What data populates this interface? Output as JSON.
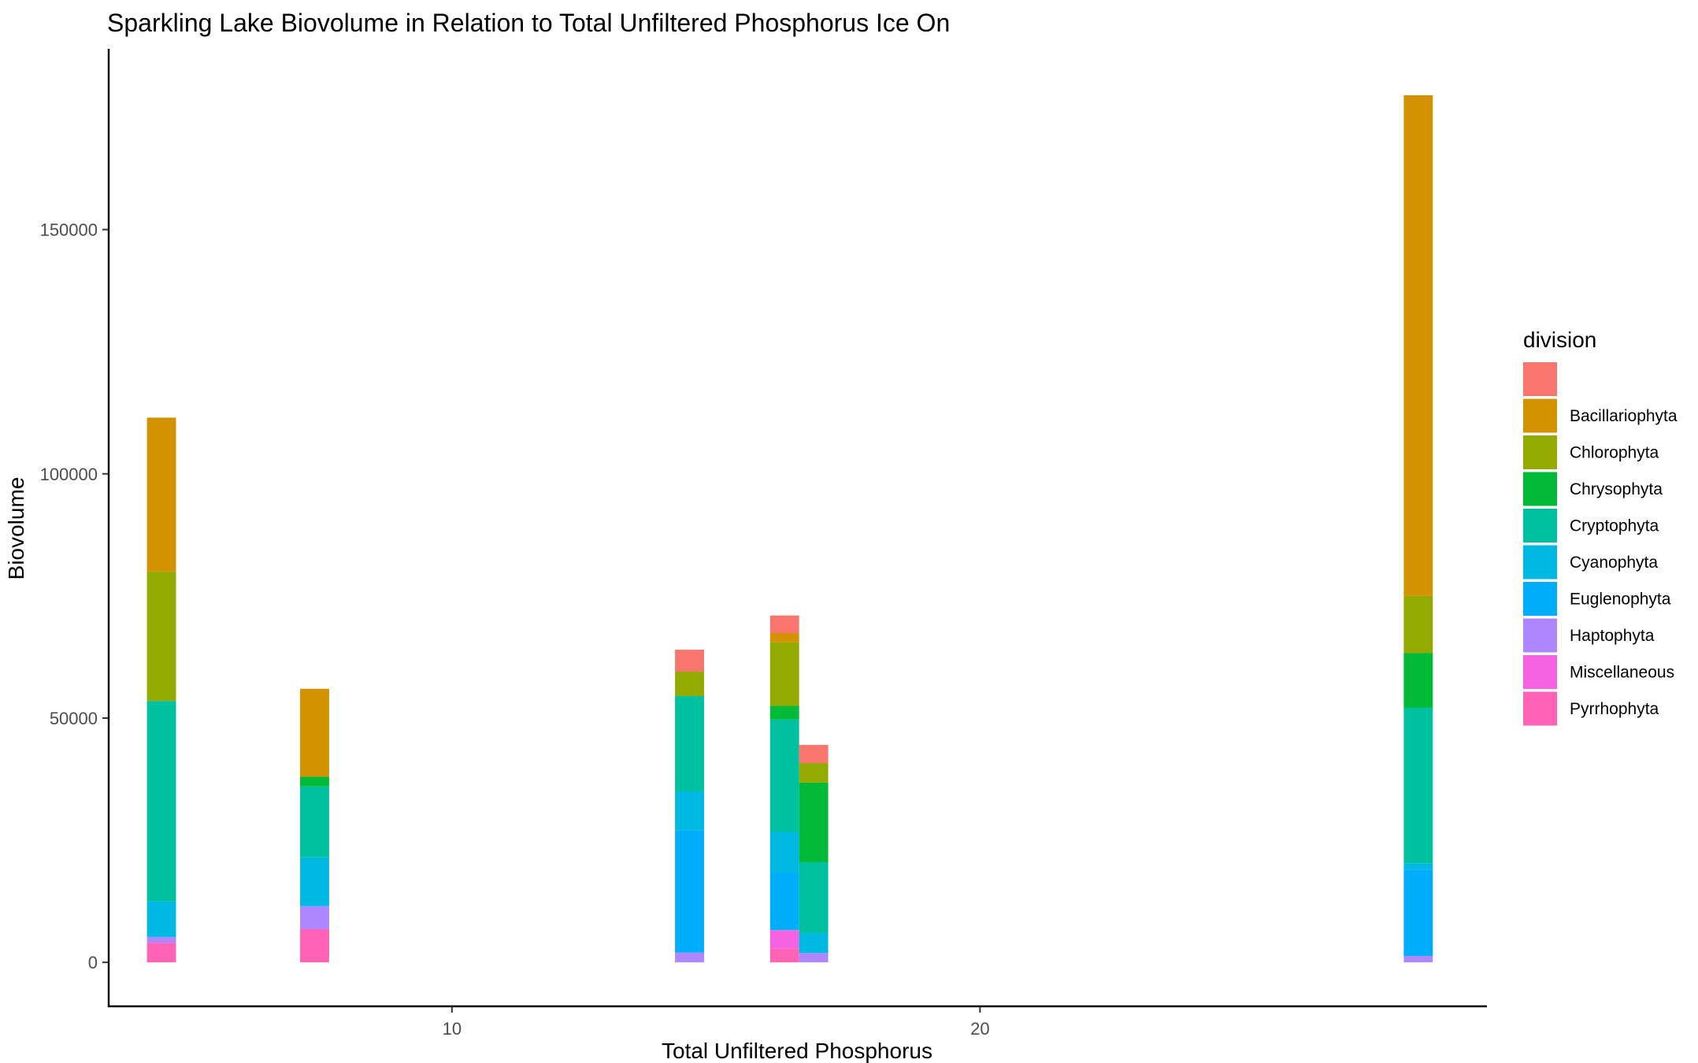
{
  "chart_data": {
    "type": "bar",
    "stacked": true,
    "title": "Sparkling Lake Biovolume in Relation to Total Unfiltered Phosphorus Ice On",
    "xlabel": "Total Unfiltered Phosphorus",
    "ylabel": "Biovolume",
    "xlim": [
      3.5,
      29.6
    ],
    "ylim": [
      -9000,
      187000
    ],
    "x_ticks": [
      10,
      20
    ],
    "y_ticks": [
      0,
      50000,
      100000,
      150000
    ],
    "legend": {
      "title": "division",
      "position": "right"
    },
    "grid": false,
    "bar_width": 0.55,
    "divisions": [
      {
        "name": "",
        "color": "#F8766D"
      },
      {
        "name": "Bacillariophyta",
        "color": "#D39200"
      },
      {
        "name": "Chlorophyta",
        "color": "#93AA00"
      },
      {
        "name": "Chrysophyta",
        "color": "#00BA38"
      },
      {
        "name": "Cryptophyta",
        "color": "#00C19F"
      },
      {
        "name": "Cyanophyta",
        "color": "#00B9E3"
      },
      {
        "name": "Euglenophyta",
        "color": "#00ADFA"
      },
      {
        "name": "Haptophyta",
        "color": "#AE87FF"
      },
      {
        "name": "Miscellaneous",
        "color": "#F563E3"
      },
      {
        "name": "Pyrrhophyta",
        "color": "#FF63B6"
      }
    ],
    "bars": [
      {
        "x": 4.5,
        "values": {
          "Pyrrhophyta": 4000,
          "Haptophyta": 1200,
          "Cyanophyta": 7300,
          "Cryptophyta": 41000,
          "Chlorophyta": 26500,
          "Bacillariophyta": 31500
        }
      },
      {
        "x": 7.4,
        "values": {
          "Pyrrhophyta": 6800,
          "Haptophyta": 4700,
          "Cyanophyta": 10000,
          "Cryptophyta": 14500,
          "Chrysophyta": 2000,
          "Bacillariophyta": 18000
        }
      },
      {
        "x": 14.5,
        "values": {
          "Haptophyta": 2000,
          "Euglenophyta": 25000,
          "Cyanophyta": 8000,
          "Cryptophyta": 19500,
          "Chlorophyta": 5000,
          "": 4500
        }
      },
      {
        "x": 16.3,
        "values": {
          "Pyrrhophyta": 2800,
          "Miscellaneous": 3800,
          "Euglenophyta": 11800,
          "Cyanophyta": 8300,
          "Cryptophyta": 23000,
          "Chrysophyta": 2800,
          "Chlorophyta": 13000,
          "Bacillariophyta": 1900,
          "": 3600
        }
      },
      {
        "x": 16.85,
        "values": {
          "Haptophyta": 1900,
          "Cyanophyta": 4100,
          "Cryptophyta": 14500,
          "Chrysophyta": 16300,
          "Chlorophyta": 4000,
          "": 3700
        }
      },
      {
        "x": 28.3,
        "values": {
          "Haptophyta": 1300,
          "Euglenophyta": 17700,
          "Cyanophyta": 1300,
          "Cryptophyta": 31800,
          "Chrysophyta": 11200,
          "Chlorophyta": 11700,
          "Bacillariophyta": 102500
        }
      }
    ]
  }
}
